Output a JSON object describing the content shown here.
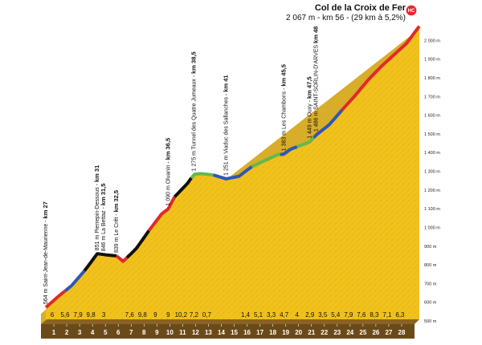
{
  "title": {
    "name": "Col de la Croix de Fer",
    "info": "2 067 m - km 56 - (29 km à 5,2%)",
    "category": "HC"
  },
  "colors": {
    "rough": "#2e57b5",
    "easy": "#64b84d",
    "steep": "#e02a2a",
    "hard": "#111111",
    "fill": "#f2c21c",
    "base": "#6b4a1a"
  },
  "chart_data": {
    "type": "area",
    "xlabel": "",
    "ylabel": "",
    "x_unit": "km",
    "x_start_km": 27,
    "x_end_km": 56,
    "ylim": [
      500,
      2100
    ],
    "y_ticks": [
      {
        "value": 500,
        "label": "500 m"
      },
      {
        "value": 600,
        "label": "600 m"
      },
      {
        "value": 700,
        "label": "700 m"
      },
      {
        "value": 800,
        "label": "800 m"
      },
      {
        "value": 900,
        "label": "900 m"
      },
      {
        "value": 1000,
        "label": "1 000 m"
      },
      {
        "value": 1100,
        "label": "1 100 m"
      },
      {
        "value": 1200,
        "label": "1 200 m"
      },
      {
        "value": 1300,
        "label": "1 300 m"
      },
      {
        "value": 1400,
        "label": "1 400 m"
      },
      {
        "value": 1500,
        "label": "1 500 m"
      },
      {
        "value": 1600,
        "label": "1 600 m"
      },
      {
        "value": 1700,
        "label": "1 700 m"
      },
      {
        "value": 1800,
        "label": "1 800 m"
      },
      {
        "value": 1900,
        "label": "1 900 m"
      },
      {
        "value": 2000,
        "label": "2 000 m"
      }
    ],
    "km_labels": [
      "1",
      "2",
      "3",
      "4",
      "5",
      "6",
      "7",
      "8",
      "9",
      "10",
      "11",
      "12",
      "13",
      "14",
      "15",
      "16",
      "17",
      "18",
      "19",
      "20",
      "21",
      "22",
      "23",
      "24",
      "25",
      "26",
      "27",
      "28"
    ],
    "segment_gradients": [
      "6",
      "5,6",
      "7,9",
      "9,8",
      "3",
      "",
      "7,6",
      "9,8",
      "9",
      "9",
      "10,2",
      "7,2",
      "0,7",
      "",
      "",
      "1,4",
      "5,1",
      "3,3",
      "4,7",
      "4",
      "2,9",
      "3,5",
      "5,4",
      "7,9",
      "7,6",
      "8,3",
      "7,1",
      "6,3"
    ],
    "profile": [
      {
        "km": 27,
        "alt": 564
      },
      {
        "km": 28,
        "alt": 624
      },
      {
        "km": 29,
        "alt": 680
      },
      {
        "km": 30,
        "alt": 759
      },
      {
        "km": 31,
        "alt": 851
      },
      {
        "km": 31.5,
        "alt": 846
      },
      {
        "km": 32.5,
        "alt": 839
      },
      {
        "km": 33,
        "alt": 810
      },
      {
        "km": 34,
        "alt": 876
      },
      {
        "km": 35,
        "alt": 974
      },
      {
        "km": 36,
        "alt": 1064
      },
      {
        "km": 36.5,
        "alt": 1090
      },
      {
        "km": 37,
        "alt": 1155
      },
      {
        "km": 38,
        "alt": 1227
      },
      {
        "km": 38.5,
        "alt": 1275
      },
      {
        "km": 39,
        "alt": 1279
      },
      {
        "km": 40,
        "alt": 1272
      },
      {
        "km": 41,
        "alt": 1251
      },
      {
        "km": 42,
        "alt": 1265
      },
      {
        "km": 43,
        "alt": 1316
      },
      {
        "km": 44,
        "alt": 1349
      },
      {
        "km": 45,
        "alt": 1380
      },
      {
        "km": 45.5,
        "alt": 1383
      },
      {
        "km": 46,
        "alt": 1410
      },
      {
        "km": 47,
        "alt": 1435
      },
      {
        "km": 47.5,
        "alt": 1449
      },
      {
        "km": 48,
        "alt": 1486
      },
      {
        "km": 49,
        "alt": 1540
      },
      {
        "km": 50,
        "alt": 1619
      },
      {
        "km": 51,
        "alt": 1695
      },
      {
        "km": 52,
        "alt": 1778
      },
      {
        "km": 53,
        "alt": 1849
      },
      {
        "km": 54,
        "alt": 1912
      },
      {
        "km": 55,
        "alt": 1975
      },
      {
        "km": 56,
        "alt": 2067
      }
    ],
    "line_segments": [
      {
        "from_km": 27,
        "to_km": 28.5,
        "class": "steep"
      },
      {
        "from_km": 28.5,
        "to_km": 30,
        "class": "rough"
      },
      {
        "from_km": 30,
        "to_km": 31.2,
        "class": "hard"
      },
      {
        "from_km": 31.2,
        "to_km": 32.5,
        "class": "hard"
      },
      {
        "from_km": 32.5,
        "to_km": 33.3,
        "class": "steep"
      },
      {
        "from_km": 33.3,
        "to_km": 35,
        "class": "hard"
      },
      {
        "from_km": 35,
        "to_km": 37,
        "class": "steep"
      },
      {
        "from_km": 37,
        "to_km": 38.3,
        "class": "hard"
      },
      {
        "from_km": 38.3,
        "to_km": 40,
        "class": "easy"
      },
      {
        "from_km": 40,
        "to_km": 43,
        "class": "rough"
      },
      {
        "from_km": 43,
        "to_km": 45.2,
        "class": "easy"
      },
      {
        "from_km": 45.2,
        "to_km": 46.5,
        "class": "rough"
      },
      {
        "from_km": 46.5,
        "to_km": 47.8,
        "class": "easy"
      },
      {
        "from_km": 47.8,
        "to_km": 50,
        "class": "rough"
      },
      {
        "from_km": 50,
        "to_km": 56,
        "class": "steep"
      }
    ],
    "annotations": [
      {
        "km": 27,
        "alt": 564,
        "text": "564 m  Saint-Jean-de-Maurienne - ",
        "km_text": "km 27"
      },
      {
        "km": 31,
        "alt": 851,
        "text": "851 m  Pierrepin-Dessous - ",
        "km_text": "km 31"
      },
      {
        "km": 31.5,
        "alt": 846,
        "text": "846 m  La Bettaz - ",
        "km_text": "km 31,5"
      },
      {
        "km": 32.5,
        "alt": 839,
        "text": "839 m  Le Crêt - ",
        "km_text": "km 32,5"
      },
      {
        "km": 36.5,
        "alt": 1090,
        "text": "1 090 m  Olvanin - ",
        "km_text": "km 36,5"
      },
      {
        "km": 38.5,
        "alt": 1275,
        "text": "1 275 m  Tunnel des Quatre Jumeaux - ",
        "km_text": "km 38,5"
      },
      {
        "km": 41,
        "alt": 1251,
        "text": "1 251 m  Viaduc des Sallanches - ",
        "km_text": "km 41"
      },
      {
        "km": 45.5,
        "alt": 1383,
        "text": "1 383 m  Les Chambons - ",
        "km_text": "km 45,5"
      },
      {
        "km": 47.5,
        "alt": 1449,
        "text": "1 449 m  Ouxy - ",
        "km_text": "km 47,5"
      },
      {
        "km": 48,
        "alt": 1486,
        "text": "1 486 m  SAINT-SORLIN-D'ARVES  ",
        "km_text": "km 48"
      }
    ]
  }
}
